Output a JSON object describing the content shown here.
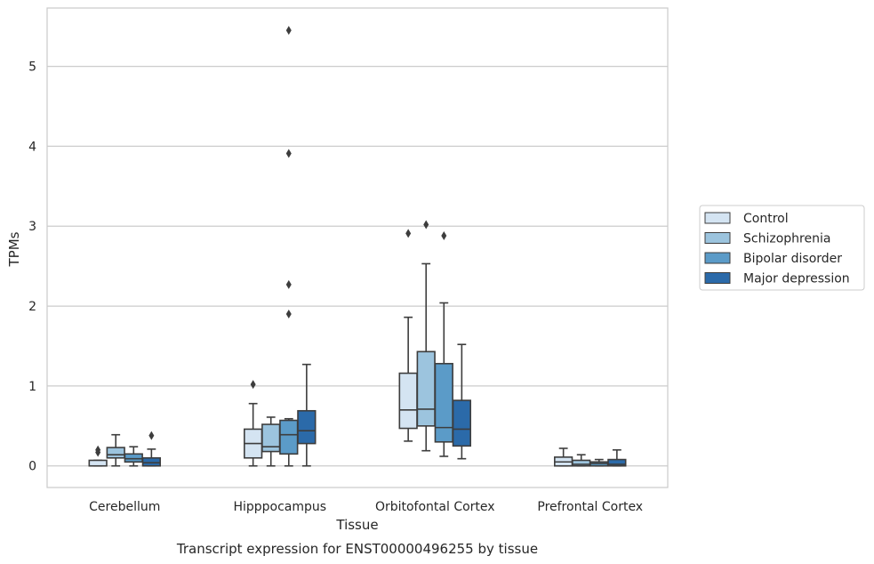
{
  "chart_data": {
    "type": "box",
    "title": "",
    "caption": "Transcript expression for ENST00000496255 by tissue",
    "xlabel": "Tissue",
    "ylabel": "TPMs",
    "ylim": [
      -0.27,
      5.73
    ],
    "yticks": [
      0,
      1,
      2,
      3,
      4,
      5
    ],
    "grid": "horizontal",
    "legend_position": "right",
    "categories": [
      "Cerebellum",
      "Hipppocampus",
      "Orbitofontal Cortex",
      "Prefrontal Cortex"
    ],
    "series": [
      {
        "name": "Control",
        "color": "#d4e4f2",
        "boxes": [
          {
            "whislo": 0,
            "q1": 0,
            "med": 0,
            "q3": 0.07,
            "whishi": 0.07,
            "fliers": [
              0.17,
              0.2
            ]
          },
          {
            "whislo": 0,
            "q1": 0.1,
            "med": 0.28,
            "q3": 0.46,
            "whishi": 0.78,
            "fliers": [
              1.02
            ]
          },
          {
            "whislo": 0.31,
            "q1": 0.47,
            "med": 0.7,
            "q3": 1.16,
            "whishi": 1.86,
            "fliers": [
              2.91
            ]
          },
          {
            "whislo": 0,
            "q1": 0,
            "med": 0.05,
            "q3": 0.11,
            "whishi": 0.22,
            "fliers": []
          }
        ]
      },
      {
        "name": "Schizophrenia",
        "color": "#9cc4de",
        "boxes": [
          {
            "whislo": 0,
            "q1": 0.1,
            "med": 0.14,
            "q3": 0.23,
            "whishi": 0.39,
            "fliers": []
          },
          {
            "whislo": 0,
            "q1": 0.18,
            "med": 0.24,
            "q3": 0.52,
            "whishi": 0.61,
            "fliers": []
          },
          {
            "whislo": 0.19,
            "q1": 0.5,
            "med": 0.71,
            "q3": 1.43,
            "whishi": 2.53,
            "fliers": [
              3.02
            ]
          },
          {
            "whislo": 0,
            "q1": 0,
            "med": 0.02,
            "q3": 0.07,
            "whishi": 0.14,
            "fliers": []
          }
        ]
      },
      {
        "name": "Bipolar disorder",
        "color": "#5b9bc8",
        "boxes": [
          {
            "whislo": 0,
            "q1": 0.05,
            "med": 0.09,
            "q3": 0.15,
            "whishi": 0.24,
            "fliers": []
          },
          {
            "whislo": 0,
            "q1": 0.15,
            "med": 0.39,
            "q3": 0.57,
            "whishi": 0.59,
            "fliers": [
              1.9,
              2.27,
              3.91,
              5.45
            ]
          },
          {
            "whislo": 0.12,
            "q1": 0.3,
            "med": 0.48,
            "q3": 1.28,
            "whishi": 2.04,
            "fliers": [
              2.88
            ]
          },
          {
            "whislo": 0,
            "q1": 0,
            "med": 0.03,
            "q3": 0.05,
            "whishi": 0.08,
            "fliers": []
          }
        ]
      },
      {
        "name": "Major depression",
        "color": "#2b6aa9",
        "boxes": [
          {
            "whislo": 0,
            "q1": 0,
            "med": 0.04,
            "q3": 0.1,
            "whishi": 0.21,
            "fliers": [
              0.38
            ]
          },
          {
            "whislo": 0,
            "q1": 0.28,
            "med": 0.44,
            "q3": 0.69,
            "whishi": 1.27,
            "fliers": []
          },
          {
            "whislo": 0.09,
            "q1": 0.25,
            "med": 0.46,
            "q3": 0.82,
            "whishi": 1.52,
            "fliers": []
          },
          {
            "whislo": 0,
            "q1": 0,
            "med": 0.02,
            "q3": 0.08,
            "whishi": 0.2,
            "fliers": []
          }
        ]
      }
    ]
  }
}
